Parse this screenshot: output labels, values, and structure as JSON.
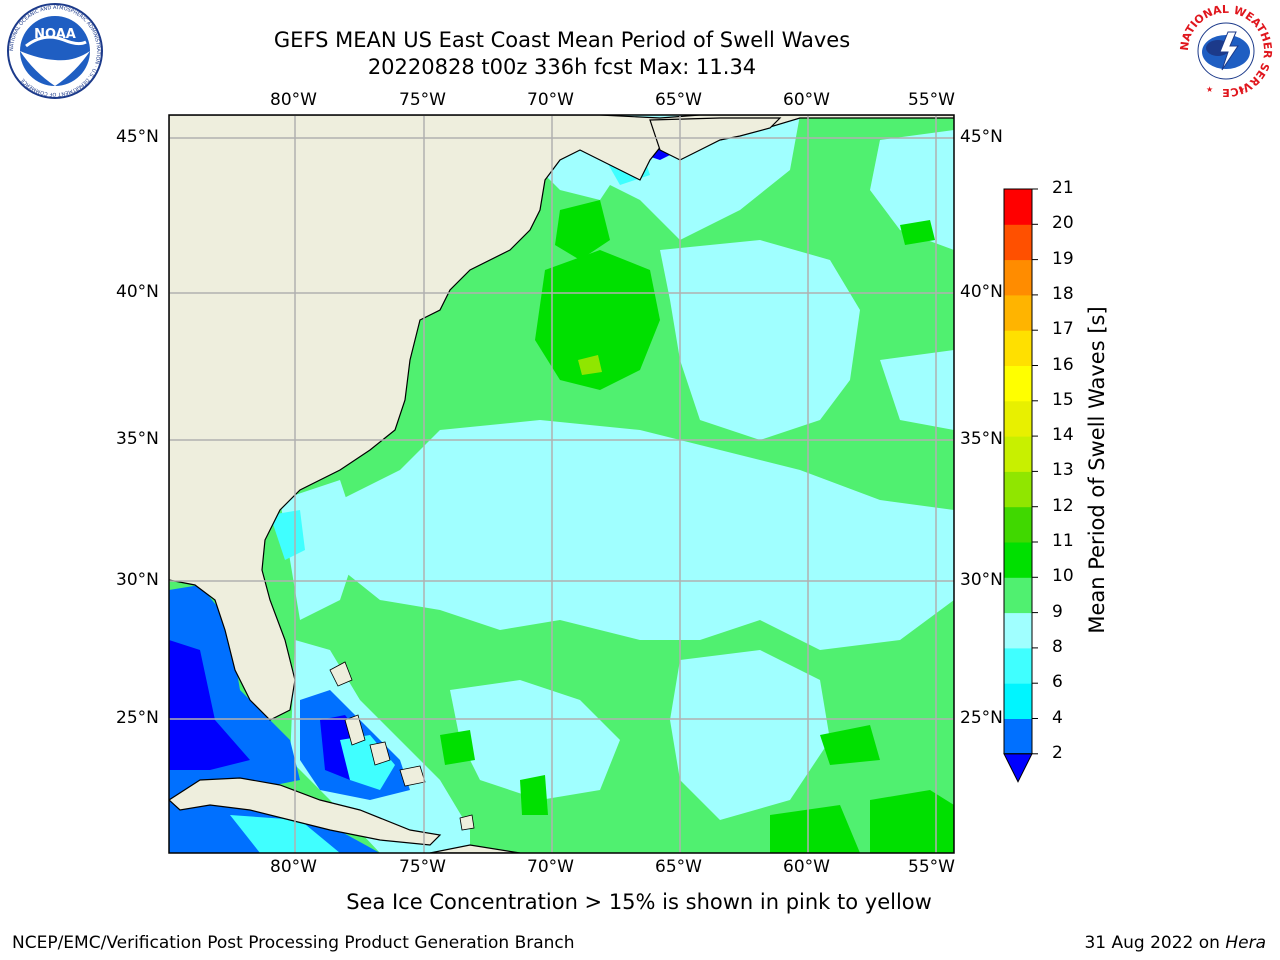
{
  "header": {
    "title_line1": "GEFS MEAN US East Coast Mean Period of Swell Waves",
    "title_line2": "20220828 t00z 336h fcst   Max: 11.34"
  },
  "logos": {
    "noaa_text": "NOAA",
    "noaa_ring_text": "NATIONAL OCEANIC AND ATMOSPHERIC ADMINISTRATION · U.S. DEPARTMENT OF COMMERCE",
    "nws_ring_text": "NATIONAL WEATHER SERVICE"
  },
  "map": {
    "lon_labels": [
      "80°W",
      "75°W",
      "70°W",
      "65°W",
      "60°W",
      "55°W"
    ],
    "lat_labels": [
      "45°N",
      "40°N",
      "35°N",
      "30°N",
      "25°N"
    ],
    "colors": {
      "land": "#eeeedd",
      "grid": "#b0b0b0"
    }
  },
  "colorbar": {
    "label": "Mean Period of Swell Waves [s]",
    "ticks": [
      "2",
      "4",
      "6",
      "8",
      "9",
      "10",
      "11",
      "12",
      "13",
      "14",
      "15",
      "16",
      "17",
      "18",
      "19",
      "20",
      "21"
    ],
    "colors": [
      "#0070ff",
      "#00f5ff",
      "#40ffff",
      "#a0ffff",
      "#50f070",
      "#00e000",
      "#40d800",
      "#90e600",
      "#c8f000",
      "#e8f000",
      "#ffff00",
      "#ffe000",
      "#ffb400",
      "#ff8c00",
      "#ff5000",
      "#ff0000"
    ],
    "extend_color": "#0000ff"
  },
  "footer": {
    "note": "Sea Ice Concentration > 15% is shown in pink to yellow",
    "org": "NCEP/EMC/Verification Post Processing Product Generation Branch",
    "date": "31 Aug 2022 on",
    "host": "Hera"
  }
}
